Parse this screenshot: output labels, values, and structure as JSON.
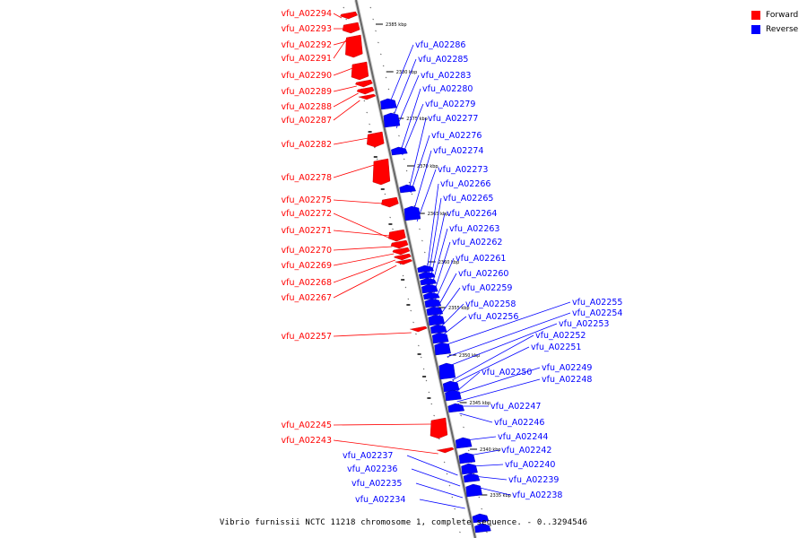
{
  "colors": {
    "forward": "#ff0000",
    "reverse": "#0000ff",
    "backbone": "#666666"
  },
  "legend": {
    "forward": "Forward",
    "reverse": "Reverse"
  },
  "caption": "Vibrio furnissii NCTC 11218 chromosome 1, complete sequence. - 0..3294546",
  "ticks": [
    "2385 kbp",
    "2380 kbp",
    "2375 kbp",
    "2370 kbp",
    "2365 kbp",
    "2360 kbp",
    "2355 kbp",
    "2350 kbp",
    "2345 kbp",
    "2340 kbp",
    "2335 kbp"
  ],
  "forward_labels": [
    "vfu_A02294",
    "vfu_A02293",
    "vfu_A02292",
    "vfu_A02291",
    "vfu_A02290",
    "vfu_A02289",
    "vfu_A02288",
    "vfu_A02287",
    "vfu_A02282",
    "vfu_A02278",
    "vfu_A02275",
    "vfu_A02272",
    "vfu_A02271",
    "vfu_A02270",
    "vfu_A02269",
    "vfu_A02268",
    "vfu_A02267",
    "vfu_A02257",
    "vfu_A02245",
    "vfu_A02243"
  ],
  "reverse_labels": [
    "vfu_A02286",
    "vfu_A02285",
    "vfu_A02283",
    "vfu_A02280",
    "vfu_A02279",
    "vfu_A02277",
    "vfu_A02276",
    "vfu_A02274",
    "vfu_A02273",
    "vfu_A02266",
    "vfu_A02265",
    "vfu_A02264",
    "vfu_A02263",
    "vfu_A02262",
    "vfu_A02261",
    "vfu_A02260",
    "vfu_A02259",
    "vfu_A02258",
    "vfu_A02256",
    "vfu_A02255",
    "vfu_A02254",
    "vfu_A02253",
    "vfu_A02252",
    "vfu_A02251",
    "vfu_A02250",
    "vfu_A02249",
    "vfu_A02248",
    "vfu_A02247",
    "vfu_A02246",
    "vfu_A02244",
    "vfu_A02242",
    "vfu_A02240",
    "vfu_A02239",
    "vfu_A02238",
    "vfu_A02237",
    "vfu_A02236",
    "vfu_A02235",
    "vfu_A02234"
  ]
}
